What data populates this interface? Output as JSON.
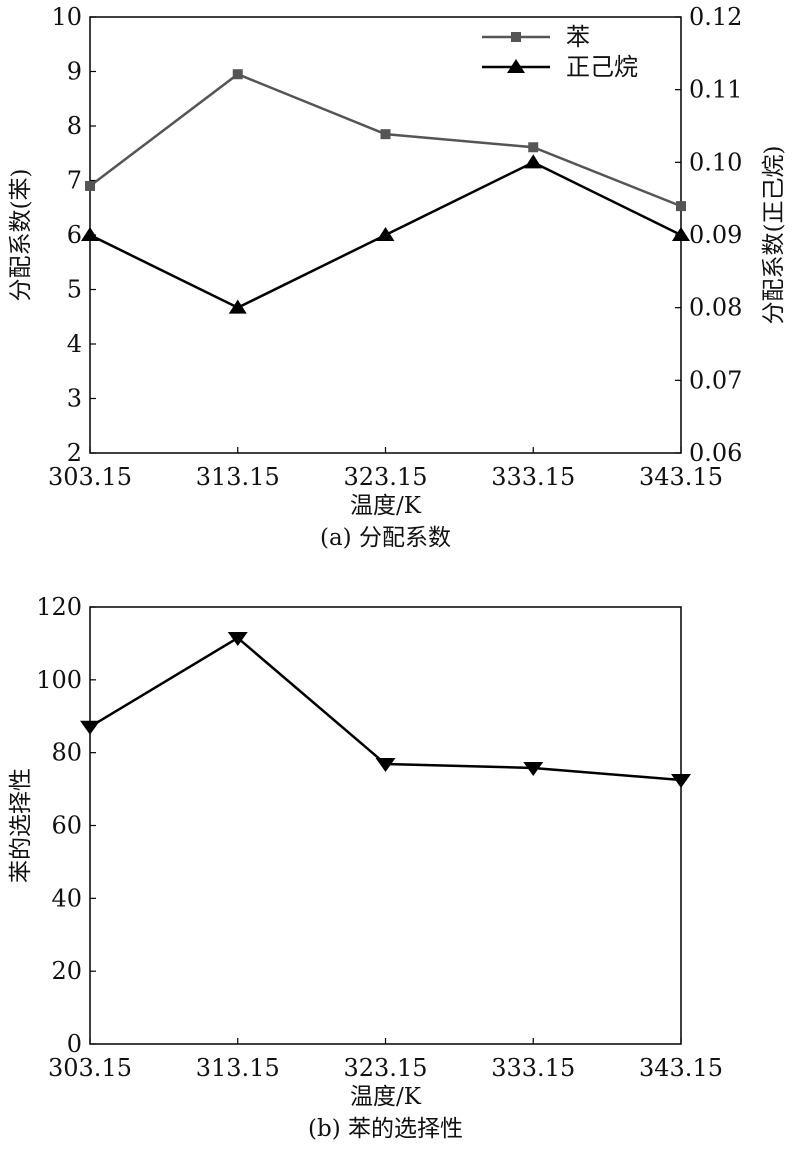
{
  "chart_data": [
    {
      "type": "line",
      "caption": "(a) 分配系数",
      "xlabel": "温度/K",
      "ylabel_left": "分配系数(苯)",
      "ylabel_right": "分配系数(正己烷)",
      "categories": [
        "303.15",
        "313.15",
        "323.15",
        "333.15",
        "343.15"
      ],
      "ylim_left": [
        2,
        10
      ],
      "yticks_left": [
        "2",
        "3",
        "4",
        "5",
        "6",
        "7",
        "8",
        "9",
        "10"
      ],
      "ylim_right": [
        0.06,
        0.12
      ],
      "yticks_right": [
        "0.06",
        "0.07",
        "0.08",
        "0.09",
        "0.10",
        "0.11",
        "0.12"
      ],
      "legend_position": "top-right",
      "series": [
        {
          "name": "苯",
          "axis": "left",
          "marker": "square",
          "color": "#555555",
          "values": [
            6.9,
            8.95,
            7.85,
            7.61,
            6.53
          ]
        },
        {
          "name": "正己烷",
          "axis": "right",
          "marker": "triangle-up",
          "color": "#000000",
          "values": [
            0.09,
            0.08,
            0.09,
            0.1,
            0.09
          ]
        }
      ],
      "grid": false
    },
    {
      "type": "line",
      "caption": "(b) 苯的选择性",
      "xlabel": "温度/K",
      "ylabel": "苯的选择性",
      "categories": [
        "303.15",
        "313.15",
        "323.15",
        "333.15",
        "343.15"
      ],
      "ylim": [
        0,
        120
      ],
      "yticks": [
        "0",
        "20",
        "40",
        "60",
        "80",
        "100",
        "120"
      ],
      "series": [
        {
          "name": "苯的选择性",
          "marker": "triangle-down",
          "color": "#000000",
          "values": [
            87.1,
            111.5,
            76.9,
            75.8,
            72.5
          ]
        }
      ],
      "grid": false
    }
  ]
}
